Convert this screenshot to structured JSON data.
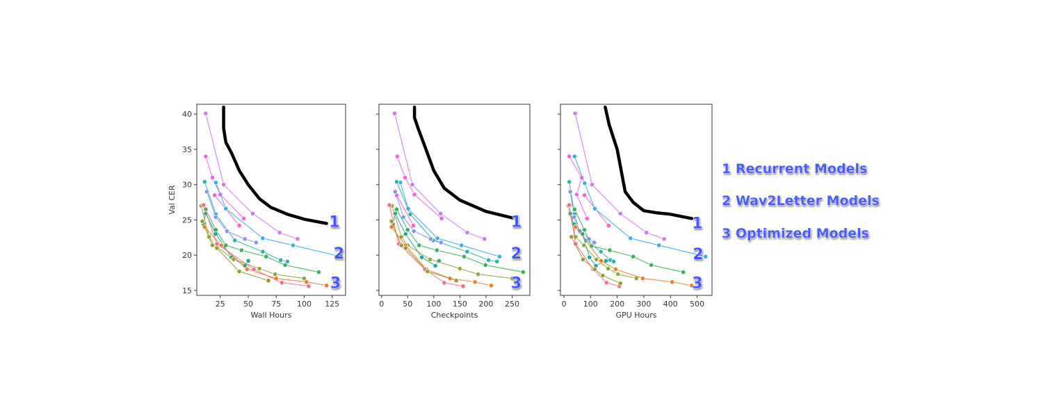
{
  "chart_data": [
    {
      "type": "line",
      "xlabel": "Wall Hours",
      "ylabel": "Val CER",
      "xlim": [
        4,
        137
      ],
      "ylim": [
        14.3,
        41.4
      ],
      "xticks": [
        25,
        50,
        75,
        100,
        125
      ],
      "yticks": [
        15,
        20,
        25,
        30,
        35,
        40
      ],
      "show_yticklabels": true,
      "grid": false,
      "series": [
        {
          "color": "#cc7af4",
          "x": [
            12,
            28,
            54,
            78,
            94
          ],
          "y": [
            40.1,
            30.0,
            25.9,
            23.2,
            22.3
          ]
        },
        {
          "color": "#f564e3",
          "x": [
            12,
            18,
            25,
            46
          ],
          "y": [
            34.0,
            31.0,
            28.6,
            25.2
          ]
        },
        {
          "color": "#ff61c3",
          "x": [
            20,
            42
          ],
          "y": [
            28.5,
            24.2
          ]
        },
        {
          "color": "#3aaee6",
          "x": [
            21,
            30,
            63,
            90,
            133
          ],
          "y": [
            30.3,
            26.6,
            22.4,
            21.4,
            19.8
          ]
        },
        {
          "color": "#2fb3a6",
          "x": [
            11,
            21,
            38,
            63,
            79,
            85
          ],
          "y": [
            30.4,
            25.8,
            22.1,
            20.5,
            19.3,
            19.1
          ]
        },
        {
          "color": "#8494ff",
          "x": [
            13,
            21,
            31,
            47,
            57
          ],
          "y": [
            29.0,
            25.4,
            23.4,
            22.3,
            21.8
          ]
        },
        {
          "color": "#3bb25a",
          "x": [
            12,
            21,
            30,
            44,
            66,
            83,
            113
          ],
          "y": [
            26.5,
            23.6,
            21.4,
            20.7,
            19.8,
            18.6,
            17.6
          ]
        },
        {
          "color": "#1fa892",
          "x": [
            10,
            12,
            21,
            35,
            47,
            50
          ],
          "y": [
            24.4,
            25.9,
            23.0,
            19.7,
            18.5,
            19.2
          ]
        },
        {
          "color": "#8fa83a",
          "x": [
            8,
            15,
            20,
            37,
            60,
            74,
            100
          ],
          "y": [
            27.0,
            22.6,
            21.4,
            19.4,
            18.1,
            17.3,
            16.7
          ]
        },
        {
          "color": "#f07d2c",
          "x": [
            11,
            26,
            49,
            75,
            102,
            120
          ],
          "y": [
            24.0,
            21.4,
            18.0,
            16.7,
            16.2,
            15.7
          ]
        },
        {
          "color": "#f56f86",
          "x": [
            10,
            22,
            55,
            80,
            104
          ],
          "y": [
            27.1,
            21.6,
            18.0,
            16.1,
            15.6
          ]
        },
        {
          "color": "#9a9a2e",
          "x": [
            9,
            18,
            22,
            42,
            68
          ],
          "y": [
            24.8,
            21.4,
            21.0,
            17.7,
            16.4
          ]
        }
      ],
      "hand_drawn_curve": {
        "color": "#000000",
        "x": [
          28,
          28,
          30,
          35,
          42,
          50,
          60,
          70,
          85,
          100,
          120
        ],
        "y": [
          41,
          38,
          36,
          34.5,
          32,
          30,
          28,
          26.8,
          25.8,
          25.1,
          24.5
        ]
      },
      "annotations": [
        {
          "text": "1",
          "x": 127,
          "y": 24.8
        },
        {
          "text": "2",
          "x": 131,
          "y": 20.3
        },
        {
          "text": "3",
          "x": 128,
          "y": 16.1
        }
      ]
    },
    {
      "type": "line",
      "xlabel": "Checkpoints",
      "ylabel": "",
      "xlim": [
        -5,
        284
      ],
      "ylim": [
        14.3,
        41.4
      ],
      "xticks": [
        0,
        50,
        100,
        150,
        200,
        250
      ],
      "yticks": [
        15,
        20,
        25,
        30,
        35,
        40
      ],
      "show_yticklabels": false,
      "grid": false,
      "series": [
        {
          "color": "#cc7af4",
          "x": [
            25,
            59,
            113,
            164,
            197
          ],
          "y": [
            40.1,
            30.0,
            25.9,
            23.2,
            22.3
          ]
        },
        {
          "color": "#f564e3",
          "x": [
            30,
            45,
            63,
            115
          ],
          "y": [
            34.0,
            31.0,
            28.6,
            25.2
          ]
        },
        {
          "color": "#ff61c3",
          "x": [
            29,
            61
          ],
          "y": [
            28.5,
            24.2
          ]
        },
        {
          "color": "#3aaee6",
          "x": [
            36,
            51,
            107,
            153,
            226
          ],
          "y": [
            30.3,
            26.6,
            22.4,
            21.4,
            19.8
          ]
        },
        {
          "color": "#2fb3a6",
          "x": [
            29,
            55,
            99,
            164,
            205,
            221
          ],
          "y": [
            30.4,
            25.8,
            22.1,
            20.5,
            19.3,
            19.1
          ]
        },
        {
          "color": "#8494ff",
          "x": [
            26,
            42,
            62,
            94,
            114
          ],
          "y": [
            29.0,
            25.4,
            23.4,
            22.3,
            21.8
          ]
        },
        {
          "color": "#3bb25a",
          "x": [
            29,
            50,
            72,
            106,
            158,
            199,
            271
          ],
          "y": [
            26.5,
            23.6,
            21.4,
            20.7,
            19.8,
            18.6,
            17.6
          ]
        },
        {
          "color": "#1fa892",
          "x": [
            22,
            26,
            46,
            77,
            103,
            110
          ],
          "y": [
            24.4,
            25.9,
            23.0,
            19.7,
            18.5,
            19.2
          ]
        },
        {
          "color": "#8fa83a",
          "x": [
            20,
            38,
            50,
            93,
            150,
            185,
            250
          ],
          "y": [
            27.0,
            22.6,
            21.4,
            19.4,
            18.1,
            17.3,
            16.7
          ]
        },
        {
          "color": "#f07d2c",
          "x": [
            19,
            46,
            86,
            131,
            179,
            210
          ],
          "y": [
            24.0,
            21.4,
            18.0,
            16.7,
            16.2,
            15.7
          ]
        },
        {
          "color": "#f56f86",
          "x": [
            15,
            33,
            83,
            120,
            156
          ],
          "y": [
            27.1,
            21.6,
            18.0,
            16.1,
            15.6
          ]
        },
        {
          "color": "#9a9a2e",
          "x": [
            19,
            38,
            46,
            88,
            143
          ],
          "y": [
            24.8,
            21.4,
            21.0,
            17.7,
            16.4
          ]
        }
      ],
      "hand_drawn_curve": {
        "color": "#000000",
        "x": [
          63,
          63,
          70,
          85,
          100,
          120,
          150,
          200,
          250
        ],
        "y": [
          41,
          39.5,
          38,
          35,
          32,
          29.5,
          27.8,
          26.2,
          25.3
        ]
      },
      "annotations": [
        {
          "text": "1",
          "x": 258,
          "y": 24.8
        },
        {
          "text": "2",
          "x": 258,
          "y": 20.3
        },
        {
          "text": "3",
          "x": 258,
          "y": 16.1
        }
      ]
    },
    {
      "type": "line",
      "xlabel": "GPU Hours",
      "ylabel": "",
      "xlim": [
        -13,
        556
      ],
      "ylim": [
        14.3,
        41.4
      ],
      "xticks": [
        0,
        100,
        200,
        300,
        400,
        500
      ],
      "yticks": [
        15,
        20,
        25,
        30,
        35,
        40
      ],
      "show_yticklabels": false,
      "grid": false,
      "series": [
        {
          "color": "#cc7af4",
          "x": [
            42,
            106,
            212,
            310,
            376
          ],
          "y": [
            40.1,
            30.0,
            25.9,
            23.2,
            22.3
          ]
        },
        {
          "color": "#f564e3",
          "x": [
            20,
            67,
            48,
            87
          ],
          "y": [
            34.0,
            31.0,
            28.6,
            25.2
          ]
        },
        {
          "color": "#ff61c3",
          "x": [
            77,
            168
          ],
          "y": [
            28.5,
            24.2
          ]
        },
        {
          "color": "#3aaee6",
          "x": [
            40,
            78,
            116,
            250,
            357,
            532
          ],
          "y": [
            34.0,
            30.2,
            26.6,
            22.4,
            21.4,
            19.8
          ]
        },
        {
          "color": "#2fb3a6",
          "x": [
            20,
            40,
            58,
            84,
            139,
            174,
            187
          ],
          "y": [
            30.4,
            25.8,
            23.4,
            22.1,
            20.5,
            19.3,
            19.1
          ]
        },
        {
          "color": "#8494ff",
          "x": [
            24,
            38,
            60,
            94,
            114
          ],
          "y": [
            29.0,
            25.4,
            23.4,
            22.3,
            21.8
          ]
        },
        {
          "color": "#3bb25a",
          "x": [
            40,
            77,
            104,
            172,
            260,
            328,
            448
          ],
          "y": [
            26.5,
            23.6,
            21.3,
            20.7,
            19.8,
            18.6,
            17.6
          ]
        },
        {
          "color": "#1fa892",
          "x": [
            24,
            38,
            70,
            96,
            120,
            158
          ],
          "y": [
            25.9,
            24.4,
            23.0,
            19.7,
            18.5,
            19.2
          ]
        },
        {
          "color": "#8fa83a",
          "x": [
            16,
            44,
            75,
            122,
            166,
            203,
            272
          ],
          "y": [
            27.0,
            22.6,
            21.4,
            19.4,
            18.1,
            17.3,
            16.7
          ]
        },
        {
          "color": "#f07d2c",
          "x": [
            44,
            140,
            194,
            296,
            406,
            480
          ],
          "y": [
            24.0,
            19.2,
            18.0,
            16.7,
            16.2,
            15.7
          ]
        },
        {
          "color": "#f56f86",
          "x": [
            20,
            44,
            110,
            160,
            208
          ],
          "y": [
            27.1,
            21.6,
            18.0,
            16.1,
            15.6
          ]
        },
        {
          "color": "#9a9a2e",
          "x": [
            28,
            72,
            116,
            146,
            212
          ],
          "y": [
            22.6,
            19.4,
            18.0,
            17.1,
            16.0
          ]
        }
      ],
      "hand_drawn_curve": {
        "color": "#000000",
        "x": [
          155,
          170,
          200,
          215,
          230,
          260,
          300,
          350,
          400,
          480
        ],
        "y": [
          41,
          38.5,
          35,
          32,
          29,
          27.5,
          26.3,
          26,
          25.8,
          25.2
        ]
      },
      "annotations": [
        {
          "text": "1",
          "x": 501,
          "y": 24.6
        },
        {
          "text": "2",
          "x": 504,
          "y": 20.2
        },
        {
          "text": "3",
          "x": 501,
          "y": 16.1
        }
      ]
    }
  ],
  "legend": {
    "items": [
      "1 Recurrent Models",
      "2 Wav2Letter Models",
      "3 Optimized Models"
    ],
    "color": "#4a5cff"
  }
}
